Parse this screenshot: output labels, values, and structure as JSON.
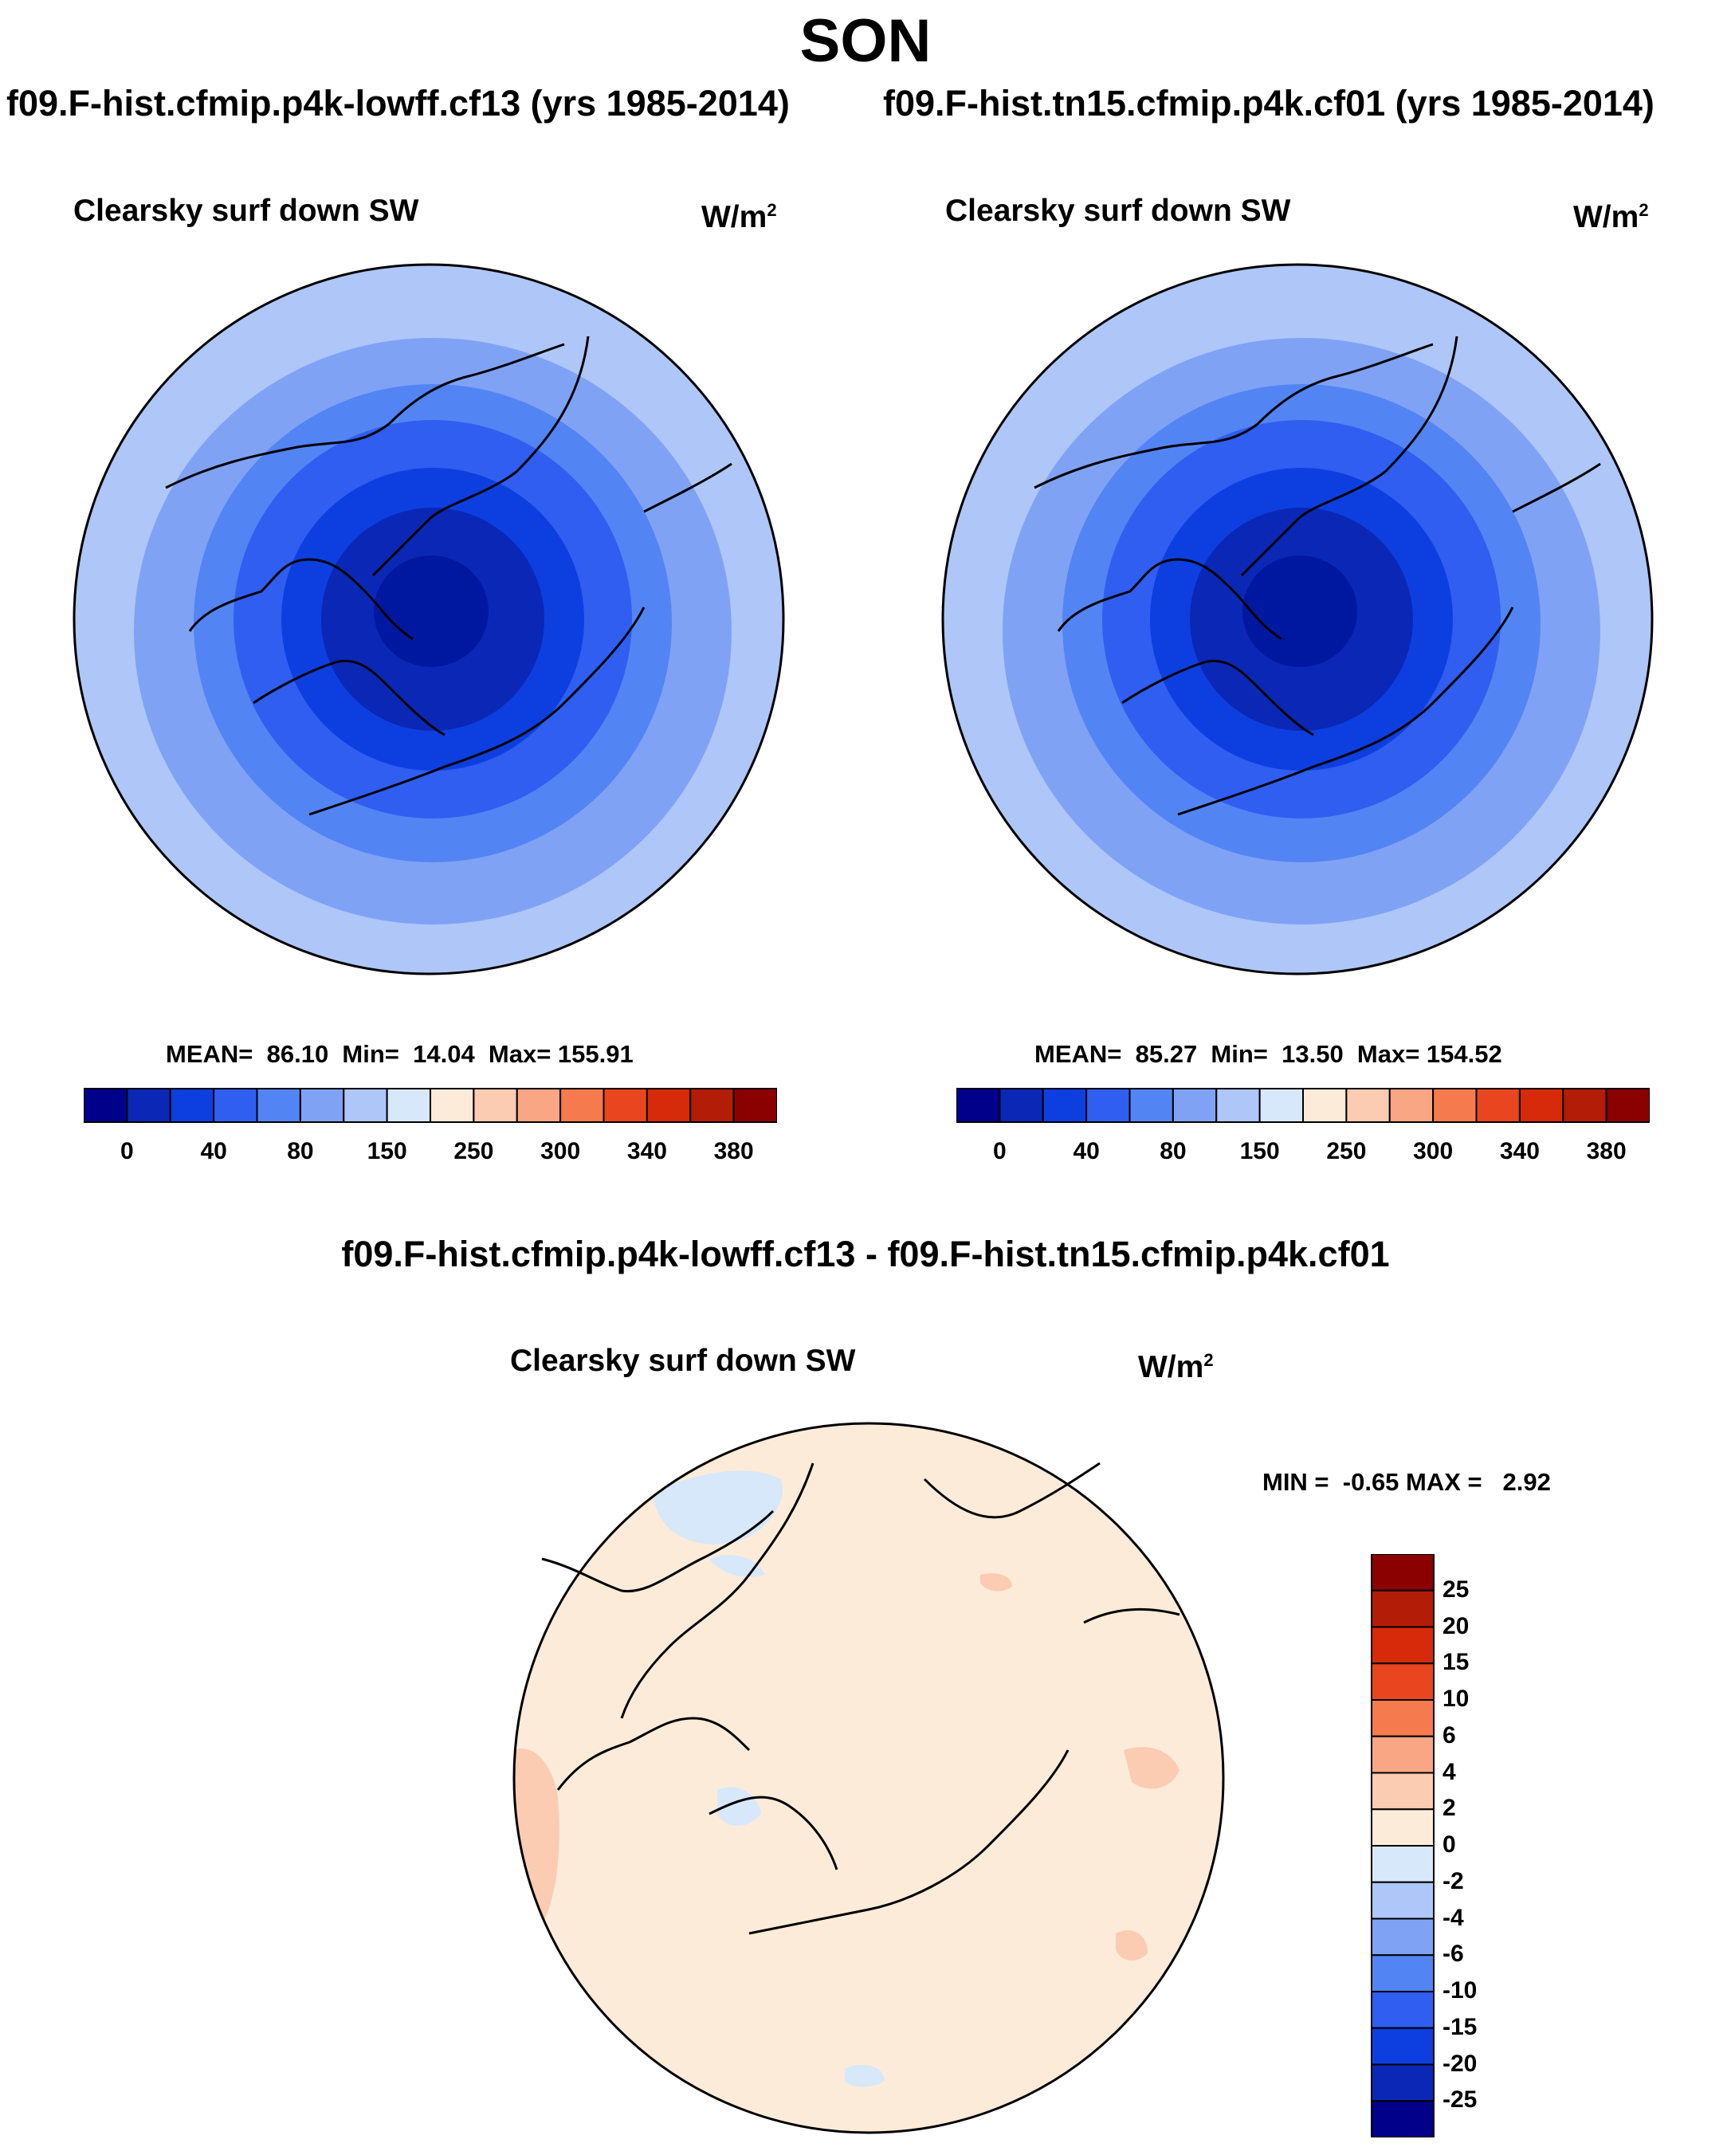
{
  "page": {
    "season": "SON",
    "case1_title": "f09.F-hist.cfmip.p4k-lowff.cf13 (yrs 1985-2014)",
    "case2_title": "f09.F-hist.tn15.cfmip.p4k.cf01 (yrs 1985-2014)",
    "diff_title": "f09.F-hist.cfmip.p4k-lowff.cf13 - f09.F-hist.tn15.cfmip.p4k.cf01"
  },
  "panels": {
    "left": {
      "variable": "Clearsky surf down SW",
      "units_base": "W/m",
      "units_exp": "2",
      "stats": "MEAN=  86.10  Min=  14.04  Max= 155.91"
    },
    "right": {
      "variable": "Clearsky surf down SW",
      "units_base": "W/m",
      "units_exp": "2",
      "stats": "MEAN=  85.27  Min=  13.50  Max= 154.52"
    },
    "diff": {
      "variable": "Clearsky surf down SW",
      "units_base": "W/m",
      "units_exp": "2",
      "stats": "MIN =  -0.65 MAX =   2.92"
    }
  },
  "chart_data": [
    {
      "type": "map-contour",
      "projection": "north-polar-stereographic",
      "title": "Clearsky surf down SW",
      "units": "W/m^2",
      "mean": 86.1,
      "min": 14.04,
      "max": 155.91,
      "levels": [
        0,
        20,
        40,
        60,
        80,
        100,
        150,
        200,
        250,
        270,
        300,
        320,
        340,
        360,
        380
      ],
      "level_labels": [
        "0",
        "40",
        "80",
        "150",
        "250",
        "300",
        "340",
        "380"
      ],
      "colors": [
        "#00008b",
        "#0a28b5",
        "#0d3fe0",
        "#2f5ef0",
        "#5384f3",
        "#7fa2f5",
        "#aec6f8",
        "#d8e8fb",
        "#fdebd9",
        "#fbcbb2",
        "#f8a683",
        "#f57a4e",
        "#e9461f",
        "#d62a0b",
        "#b31c07",
        "#8b0000"
      ]
    },
    {
      "type": "map-contour",
      "projection": "north-polar-stereographic",
      "title": "Clearsky surf down SW",
      "units": "W/m^2",
      "mean": 85.27,
      "min": 13.5,
      "max": 154.52,
      "levels": [
        0,
        20,
        40,
        60,
        80,
        100,
        150,
        200,
        250,
        270,
        300,
        320,
        340,
        360,
        380
      ],
      "level_labels": [
        "0",
        "40",
        "80",
        "150",
        "250",
        "300",
        "340",
        "380"
      ],
      "colors": [
        "#00008b",
        "#0a28b5",
        "#0d3fe0",
        "#2f5ef0",
        "#5384f3",
        "#7fa2f5",
        "#aec6f8",
        "#d8e8fb",
        "#fdebd9",
        "#fbcbb2",
        "#f8a683",
        "#f57a4e",
        "#e9461f",
        "#d62a0b",
        "#b31c07",
        "#8b0000"
      ]
    },
    {
      "type": "map-contour-difference",
      "projection": "north-polar-stereographic",
      "title": "Clearsky surf down SW",
      "units": "W/m^2",
      "min": -0.65,
      "max": 2.92,
      "levels": [
        -25,
        -20,
        -15,
        -10,
        -6,
        -4,
        -2,
        0,
        2,
        4,
        6,
        10,
        15,
        20,
        25
      ],
      "level_labels": [
        "25",
        "20",
        "15",
        "10",
        "6",
        "4",
        "2",
        "0",
        "-2",
        "-4",
        "-6",
        "-10",
        "-15",
        "-20",
        "-25"
      ],
      "colors": [
        "#8b0000",
        "#b31c07",
        "#d62a0b",
        "#e9461f",
        "#f57a4e",
        "#f8a683",
        "#fbcbb2",
        "#fdebd9",
        "#d8e8fb",
        "#aec6f8",
        "#7fa2f5",
        "#5384f3",
        "#2f5ef0",
        "#0d3fe0",
        "#0a28b5",
        "#00008b"
      ]
    }
  ]
}
